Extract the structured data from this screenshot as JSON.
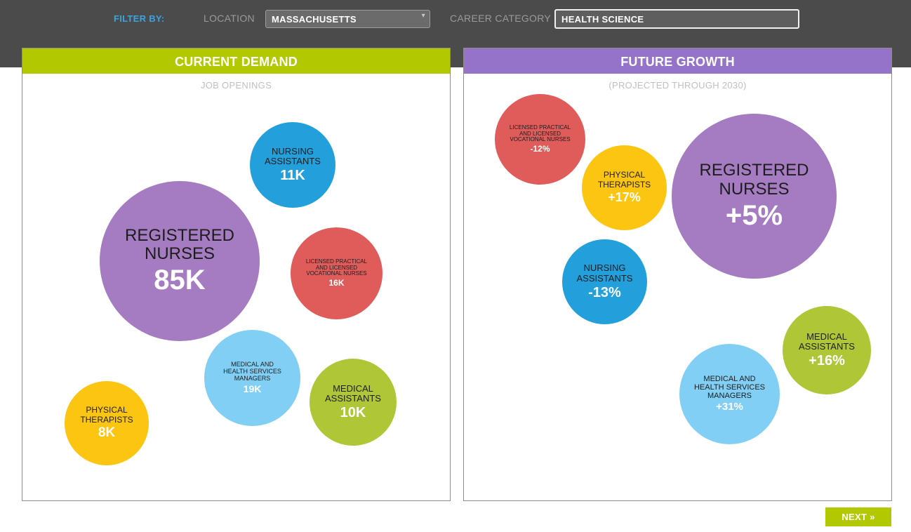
{
  "filters": {
    "filter_by_label": "FILTER BY:",
    "location_label": "LOCATION",
    "location_value": "MASSACHUSETTS",
    "category_label": "CAREER CATEGORY",
    "category_value": "HEALTH SCIENCE"
  },
  "current_demand": {
    "title": "CURRENT DEMAND",
    "subtitle": "JOB OPENINGS",
    "bubbles": [
      {
        "label1": "REGISTERED",
        "label2": "NURSES",
        "value": "85K",
        "color": "#a57cc2"
      },
      {
        "label1": "NURSING",
        "label2": "ASSISTANTS",
        "value": "11K",
        "color": "#23a0dc"
      },
      {
        "label1": "LICENSED PRACTICAL",
        "label2": "AND LICENSED",
        "label3": "VOCATIONAL NURSES",
        "value": "16K",
        "color": "#df5c5a"
      },
      {
        "label1": "MEDICAL AND",
        "label2": "HEALTH SERVICES",
        "label3": "MANAGERS",
        "value": "19K",
        "color": "#82cff5"
      },
      {
        "label1": "MEDICAL",
        "label2": "ASSISTANTS",
        "value": "10K",
        "color": "#afc637"
      },
      {
        "label1": "PHYSICAL",
        "label2": "THERAPISTS",
        "value": "8K",
        "color": "#fcc512"
      }
    ]
  },
  "future_growth": {
    "title": "FUTURE GROWTH",
    "subtitle": "(PROJECTED THROUGH 2030)",
    "bubbles": [
      {
        "label1": "LICENSED PRACTICAL",
        "label2": "AND LICENSED",
        "label3": "VOCATIONAL NURSES",
        "value": "-12%",
        "color": "#df5c5a"
      },
      {
        "label1": "PHYSICAL",
        "label2": "THERAPISTS",
        "value": "+17%",
        "color": "#fcc512"
      },
      {
        "label1": "REGISTERED",
        "label2": "NURSES",
        "value": "+5%",
        "color": "#a57cc2"
      },
      {
        "label1": "NURSING",
        "label2": "ASSISTANTS",
        "value": "-13%",
        "color": "#23a0dc"
      },
      {
        "label1": "MEDICAL",
        "label2": "ASSISTANTS",
        "value": "+16%",
        "color": "#afc637"
      },
      {
        "label1": "MEDICAL AND",
        "label2": "HEALTH SERVICES",
        "label3": "MANAGERS",
        "value": "+31%",
        "color": "#82cff5"
      }
    ]
  },
  "next_label": "NEXT »"
}
